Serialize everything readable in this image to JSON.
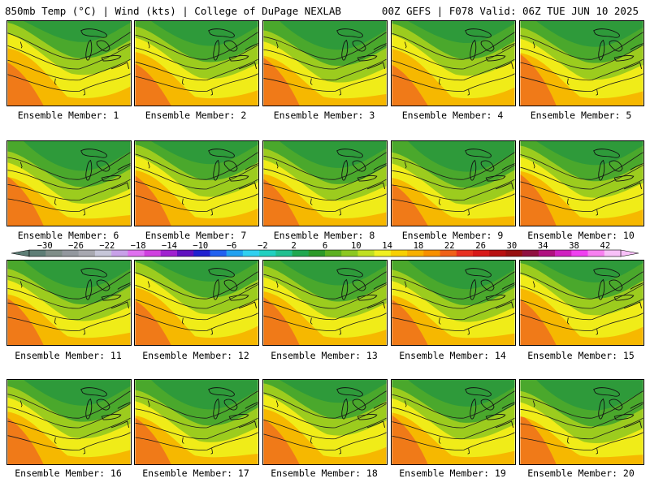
{
  "header": {
    "left": "850mb Temp (°C) | Wind (kts) | College of DuPage NEXLAB",
    "right": "00Z GEFS | F078 Valid: 06Z TUE JUN 10 2025"
  },
  "members": [
    {
      "label": "Ensemble Member: 1"
    },
    {
      "label": "Ensemble Member: 2"
    },
    {
      "label": "Ensemble Member: 3"
    },
    {
      "label": "Ensemble Member: 4"
    },
    {
      "label": "Ensemble Member: 5"
    },
    {
      "label": "Ensemble Member: 6"
    },
    {
      "label": "Ensemble Member: 7"
    },
    {
      "label": "Ensemble Member: 8"
    },
    {
      "label": "Ensemble Member: 9"
    },
    {
      "label": "Ensemble Member: 10"
    },
    {
      "label": "Ensemble Member: 11"
    },
    {
      "label": "Ensemble Member: 12"
    },
    {
      "label": "Ensemble Member: 13"
    },
    {
      "label": "Ensemble Member: 14"
    },
    {
      "label": "Ensemble Member: 15"
    },
    {
      "label": "Ensemble Member: 16"
    },
    {
      "label": "Ensemble Member: 17"
    },
    {
      "label": "Ensemble Member: 18"
    },
    {
      "label": "Ensemble Member: 19"
    },
    {
      "label": "Ensemble Member: 20"
    }
  ],
  "colorbar": {
    "tick_labels": [
      "−30",
      "−26",
      "−22",
      "−18",
      "−14",
      "−10",
      "−6",
      "−2",
      "2",
      "6",
      "10",
      "14",
      "18",
      "22",
      "26",
      "30",
      "34",
      "38",
      "42"
    ],
    "colors": [
      "#5e7e76",
      "#7f8e88",
      "#93989e",
      "#a8a8b0",
      "#c6c6d8",
      "#c8a0e8",
      "#e070f0",
      "#d040e0",
      "#a020d0",
      "#6010c0",
      "#2020d0",
      "#2060f0",
      "#20a0f0",
      "#30d0f0",
      "#20d0c0",
      "#20c090",
      "#20a850",
      "#2c9a28",
      "#5cb020",
      "#8cc820",
      "#c0e020",
      "#f0f020",
      "#f8d000",
      "#f8b000",
      "#f89000",
      "#f06018",
      "#e83020",
      "#d81818",
      "#b81010",
      "#981010",
      "#901040",
      "#b01080",
      "#d020c0",
      "#f040f0",
      "#f880f0",
      "#f8c0f8"
    ]
  },
  "field_colors": {
    "dark_green": "#2e9a3a",
    "green": "#4aa82c",
    "yellow_green": "#9ccc1e",
    "yellow": "#f0ec18",
    "orange": "#f6b800",
    "red_orange": "#f07a18"
  }
}
